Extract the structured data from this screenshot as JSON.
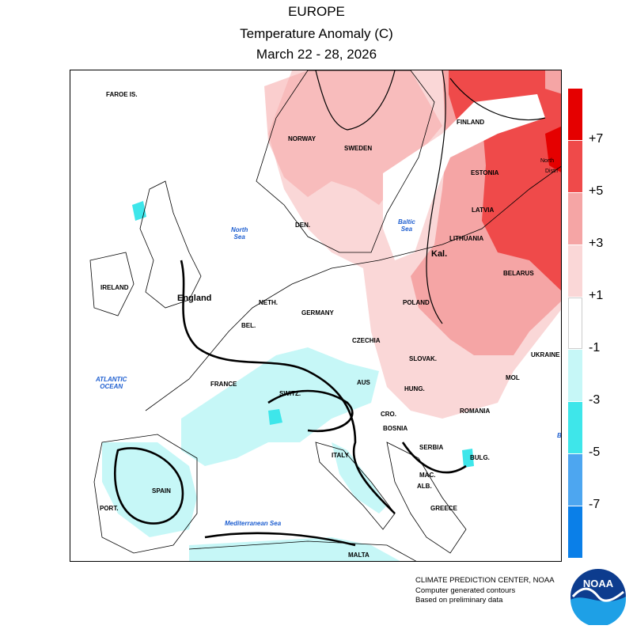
{
  "header": {
    "line1": "EUROPE",
    "line2": "Temperature Anomaly (C)",
    "line3": "March 22 - 28, 2026"
  },
  "colorbar": {
    "colors": [
      "#e50000",
      "#ef4a4a",
      "#f5a5a5",
      "#fad7d7",
      "#ffffff",
      "#c6f7f7",
      "#3ee6ea",
      "#4da6f0",
      "#0a7fe8"
    ],
    "labels": [
      "+7",
      "+5",
      "+3",
      "+1",
      "-1",
      "-3",
      "-5",
      "-7"
    ]
  },
  "map": {
    "countries": {
      "faroe": "FAROE IS.",
      "norway": "NORWAY",
      "sweden": "SWEDEN",
      "finland": "FINLAND",
      "estonia": "ESTONIA",
      "latvia": "LATVIA",
      "lithuania": "LITHUANIA",
      "kal": "Kal.",
      "belarus": "BELARUS",
      "poland": "POLAND",
      "ukraine": "UKRAINE",
      "den": "DEN.",
      "neth": "NETH.",
      "germany": "GERMANY",
      "bel": "BEL.",
      "czechia": "CZECHIA",
      "slovak": "SLOVAK.",
      "hung": "HUNG.",
      "mol": "MOL",
      "romania": "ROMANIA",
      "france": "FRANCE",
      "switz": "SWITZ.",
      "aus": "AUS",
      "cro": "CRO.",
      "bosnia": "BOSNIA",
      "serbia": "SERBIA",
      "bulg": "BULG.",
      "mac": "MAC.",
      "alb": "ALB.",
      "greece": "GREECE",
      "italy": "ITALY",
      "malta": "MALTA",
      "spain": "SPAIN",
      "port": "PORT.",
      "ireland": "IRELAND",
      "england": "England",
      "northwest": "North",
      "district": "Distri",
      "b": "B"
    },
    "seas": {
      "north_sea": "North\nSea",
      "baltic_sea": "Baltic\nSea",
      "atlantic": "ATLANTIC\nOCEAN",
      "med": "Mediterranean Sea"
    }
  },
  "footer": {
    "line1": "CLIMATE PREDICTION CENTER, NOAA",
    "line2": "Computer generated contours",
    "line3": "Based on preliminary data"
  },
  "logo": {
    "text": "NOAA",
    "icon": "noaa-logo"
  }
}
